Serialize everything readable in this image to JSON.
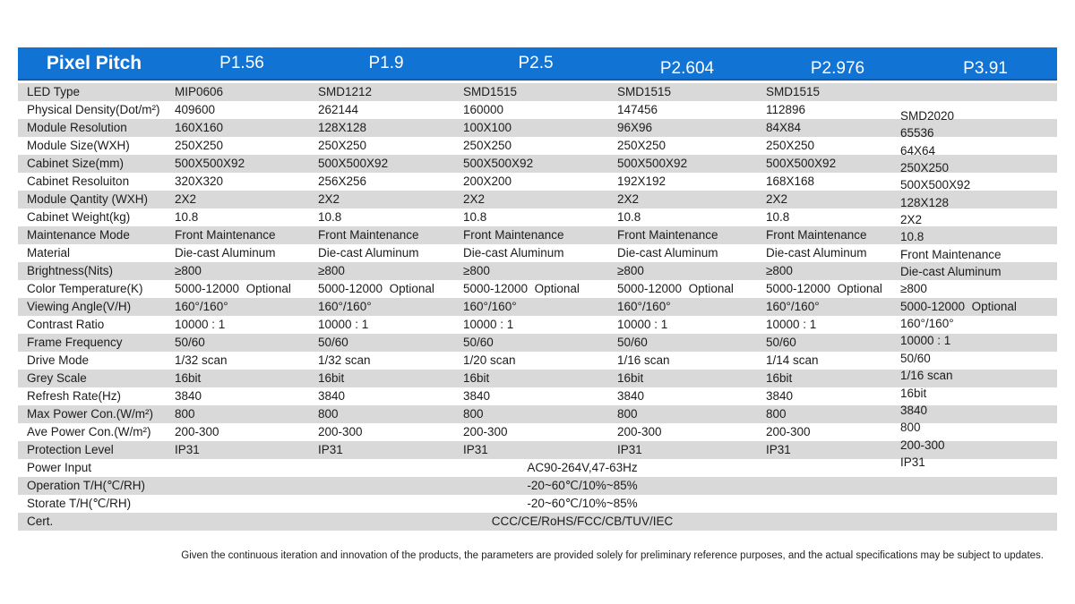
{
  "header": {
    "title": "Pixel Pitch",
    "columns": [
      "P1.56",
      "P1.9",
      "P2.5",
      "P2.604",
      "P2.976",
      "P3.91"
    ]
  },
  "table": {
    "spec_rows": [
      {
        "label": "LED Type",
        "values": [
          "MIP0606",
          "SMD1212",
          "SMD1515",
          "SMD1515",
          "SMD1515"
        ]
      },
      {
        "label": "Physical Density(Dot/m²)",
        "values": [
          "409600",
          "262144",
          "160000",
          "147456",
          "112896"
        ]
      },
      {
        "label": "Module Resolution",
        "values": [
          "160X160",
          "128X128",
          "100X100",
          "96X96",
          "84X84"
        ]
      },
      {
        "label": "Module Size(WXH)",
        "values": [
          "250X250",
          "250X250",
          "250X250",
          "250X250",
          "250X250"
        ]
      },
      {
        "label": "Cabinet Size(mm)",
        "values": [
          "500X500X92",
          "500X500X92",
          "500X500X92",
          "500X500X92",
          "500X500X92"
        ]
      },
      {
        "label": "Cabinet Resoluiton",
        "values": [
          "320X320",
          "256X256",
          "200X200",
          "192X192",
          "168X168"
        ]
      },
      {
        "label": "Module Qantity (WXH)",
        "values": [
          "2X2",
          "2X2",
          "2X2",
          "2X2",
          "2X2"
        ]
      },
      {
        "label": "Cabinet Weight(kg)",
        "values": [
          "10.8",
          "10.8",
          "10.8",
          "10.8",
          "10.8"
        ]
      },
      {
        "label": "Maintenance Mode",
        "values": [
          "Front Maintenance",
          "Front Maintenance",
          "Front Maintenance",
          "Front Maintenance",
          "Front Maintenance"
        ]
      },
      {
        "label": "Material",
        "values": [
          "Die-cast Aluminum",
          "Die-cast Aluminum",
          "Die-cast Aluminum",
          "Die-cast Aluminum",
          "Die-cast Aluminum"
        ]
      },
      {
        "label": "Brightness(Nits)",
        "values": [
          "≥800",
          "≥800",
          "≥800",
          "≥800",
          "≥800"
        ]
      },
      {
        "label": "Color Temperature(K)",
        "values": [
          "5000-12000  Optional",
          "5000-12000  Optional",
          "5000-12000  Optional",
          "5000-12000  Optional",
          "5000-12000  Optional"
        ]
      },
      {
        "label": "Viewing Angle(V/H)",
        "values": [
          "160°/160°",
          "160°/160°",
          "160°/160°",
          "160°/160°",
          "160°/160°"
        ]
      },
      {
        "label": "Contrast Ratio",
        "values": [
          "10000 : 1",
          "10000 : 1",
          "10000 : 1",
          "10000 : 1",
          "10000 : 1"
        ]
      },
      {
        "label": "Frame Frequency",
        "values": [
          "50/60",
          "50/60",
          "50/60",
          "50/60",
          "50/60"
        ]
      },
      {
        "label": "Drive Mode",
        "values": [
          "1/32 scan",
          "1/32 scan",
          "1/20 scan",
          "1/16 scan",
          "1/14 scan"
        ]
      },
      {
        "label": "Grey Scale",
        "values": [
          "16bit",
          "16bit",
          "16bit",
          "16bit",
          "16bit"
        ]
      },
      {
        "label": "Refresh Rate(Hz)",
        "values": [
          "3840",
          "3840",
          "3840",
          "3840",
          "3840"
        ]
      },
      {
        "label": "Max Power Con.(W/m²)",
        "values": [
          "800",
          "800",
          "800",
          "800",
          "800"
        ]
      },
      {
        "label": "Ave Power Con.(W/m²)",
        "values": [
          "200-300",
          "200-300",
          "200-300",
          "200-300",
          "200-300"
        ]
      },
      {
        "label": "Protection Level",
        "values": [
          "IP31",
          "IP31",
          "IP31",
          "IP31",
          "IP31"
        ]
      }
    ],
    "p391_column": {
      "column": "P3.91",
      "values": [
        "SMD2020",
        "65536",
        "64X64",
        "250X250",
        "500X500X92",
        "128X128",
        "2X2",
        "10.8",
        "Front Maintenance",
        "Die-cast Aluminum",
        "≥800",
        "5000-12000  Optional",
        "160°/160°",
        "10000 : 1",
        "50/60",
        "1/16 scan",
        "16bit",
        "3840",
        "800",
        "200-300",
        "IP31"
      ]
    },
    "full_width_rows": [
      {
        "label": "Power Input",
        "value": "AC90-264V,47-63Hz"
      },
      {
        "label": "Operation T/H(℃/RH)",
        "value": "-20~60℃/10%~85%"
      },
      {
        "label": "Storate T/H(℃/RH)",
        "value": "-20~60℃/10%~85%"
      },
      {
        "label": "Cert.",
        "value": "CCC/CE/RoHS/FCC/CB/TUV/IEC"
      }
    ]
  },
  "footer_note": "Given the continuous iteration and innovation of the products, the parameters are provided solely for preliminary reference purposes, and the actual specifications may be subject to updates.",
  "colors": {
    "header_blue": "#1173d4",
    "header_blue_dark": "#0d5fb8",
    "stripe_gray": "#d9d9d9",
    "text_dark": "#1c1c1c"
  }
}
